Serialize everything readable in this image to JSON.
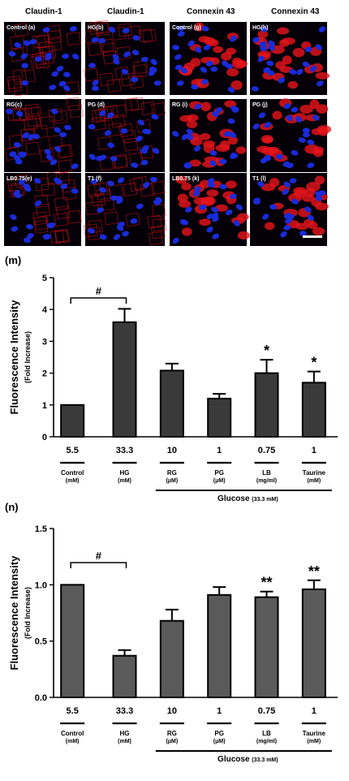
{
  "micrograph": {
    "columns": [
      "Claudin-1",
      "Claudin-1",
      "Connexin 43",
      "Connexin 43"
    ],
    "panels": [
      [
        "Control (a)",
        "HG(b)",
        "Control (g)",
        "HG(h)"
      ],
      [
        "RG(c)",
        "PG (d)",
        "RG (i)",
        "PG (j)"
      ],
      [
        "LB0.75(e)",
        "T1 (f)",
        "LB0.75 (k)",
        "T1 (l)"
      ]
    ],
    "colors": {
      "nuclei": "#1a2bd8",
      "stain": "#e8141c",
      "background": "#050008"
    }
  },
  "chart_data": [
    {
      "type": "bar",
      "panel_label": "(m)",
      "ylabel": "Fluorescence Intensity",
      "ylabel2": "(Fold Increase)",
      "ylim": [
        0,
        5
      ],
      "yticks": [
        "0",
        "1",
        "2",
        "3",
        "4",
        "5"
      ],
      "categories": [
        "5.5",
        "33.3",
        "10",
        "1",
        "0.75",
        "1"
      ],
      "values": [
        1.0,
        3.6,
        2.08,
        1.2,
        2.0,
        1.7
      ],
      "errors": [
        0,
        0.42,
        0.22,
        0.15,
        0.42,
        0.35
      ],
      "significance": [
        "",
        "",
        "",
        "",
        "*",
        "*"
      ],
      "bracket_label": "#",
      "bar_color": "#3a3a3a",
      "groups": [
        {
          "name": "Control",
          "unit": "(mM)"
        },
        {
          "name": "HG",
          "unit": "(mM)"
        },
        {
          "name": "RG",
          "unit": "(μM)"
        },
        {
          "name": "PG",
          "unit": "(μM)"
        },
        {
          "name": "LB",
          "unit": "(mg/ml)"
        },
        {
          "name": "Taurine",
          "unit": "(mM)"
        }
      ],
      "glucose_label": "Glucose",
      "glucose_unit": "(33.3 mM)"
    },
    {
      "type": "bar",
      "panel_label": "(n)",
      "ylabel": "Fluorescence Intensity",
      "ylabel2": "(Fold Increase)",
      "ylim": [
        0,
        1.5
      ],
      "yticks": [
        "0.0",
        "0.5",
        "1.0",
        "1.5"
      ],
      "categories": [
        "5.5",
        "33.3",
        "10",
        "1",
        "0.75",
        "1"
      ],
      "values": [
        1.0,
        0.37,
        0.68,
        0.91,
        0.89,
        0.96
      ],
      "errors": [
        0,
        0.05,
        0.1,
        0.07,
        0.05,
        0.08
      ],
      "significance": [
        "",
        "",
        "",
        "",
        "**",
        "**"
      ],
      "bracket_label": "#",
      "bar_color": "#5a5a5a",
      "groups": [
        {
          "name": "Control",
          "unit": "(mM)"
        },
        {
          "name": "HG",
          "unit": "(mM)"
        },
        {
          "name": "RG",
          "unit": "(μM)"
        },
        {
          "name": "PG",
          "unit": "(μM)"
        },
        {
          "name": "LB",
          "unit": "(mg/ml)"
        },
        {
          "name": "Taurine",
          "unit": "(mM)"
        }
      ],
      "glucose_label": "Glucose",
      "glucose_unit": "(33.3 mM)"
    }
  ]
}
